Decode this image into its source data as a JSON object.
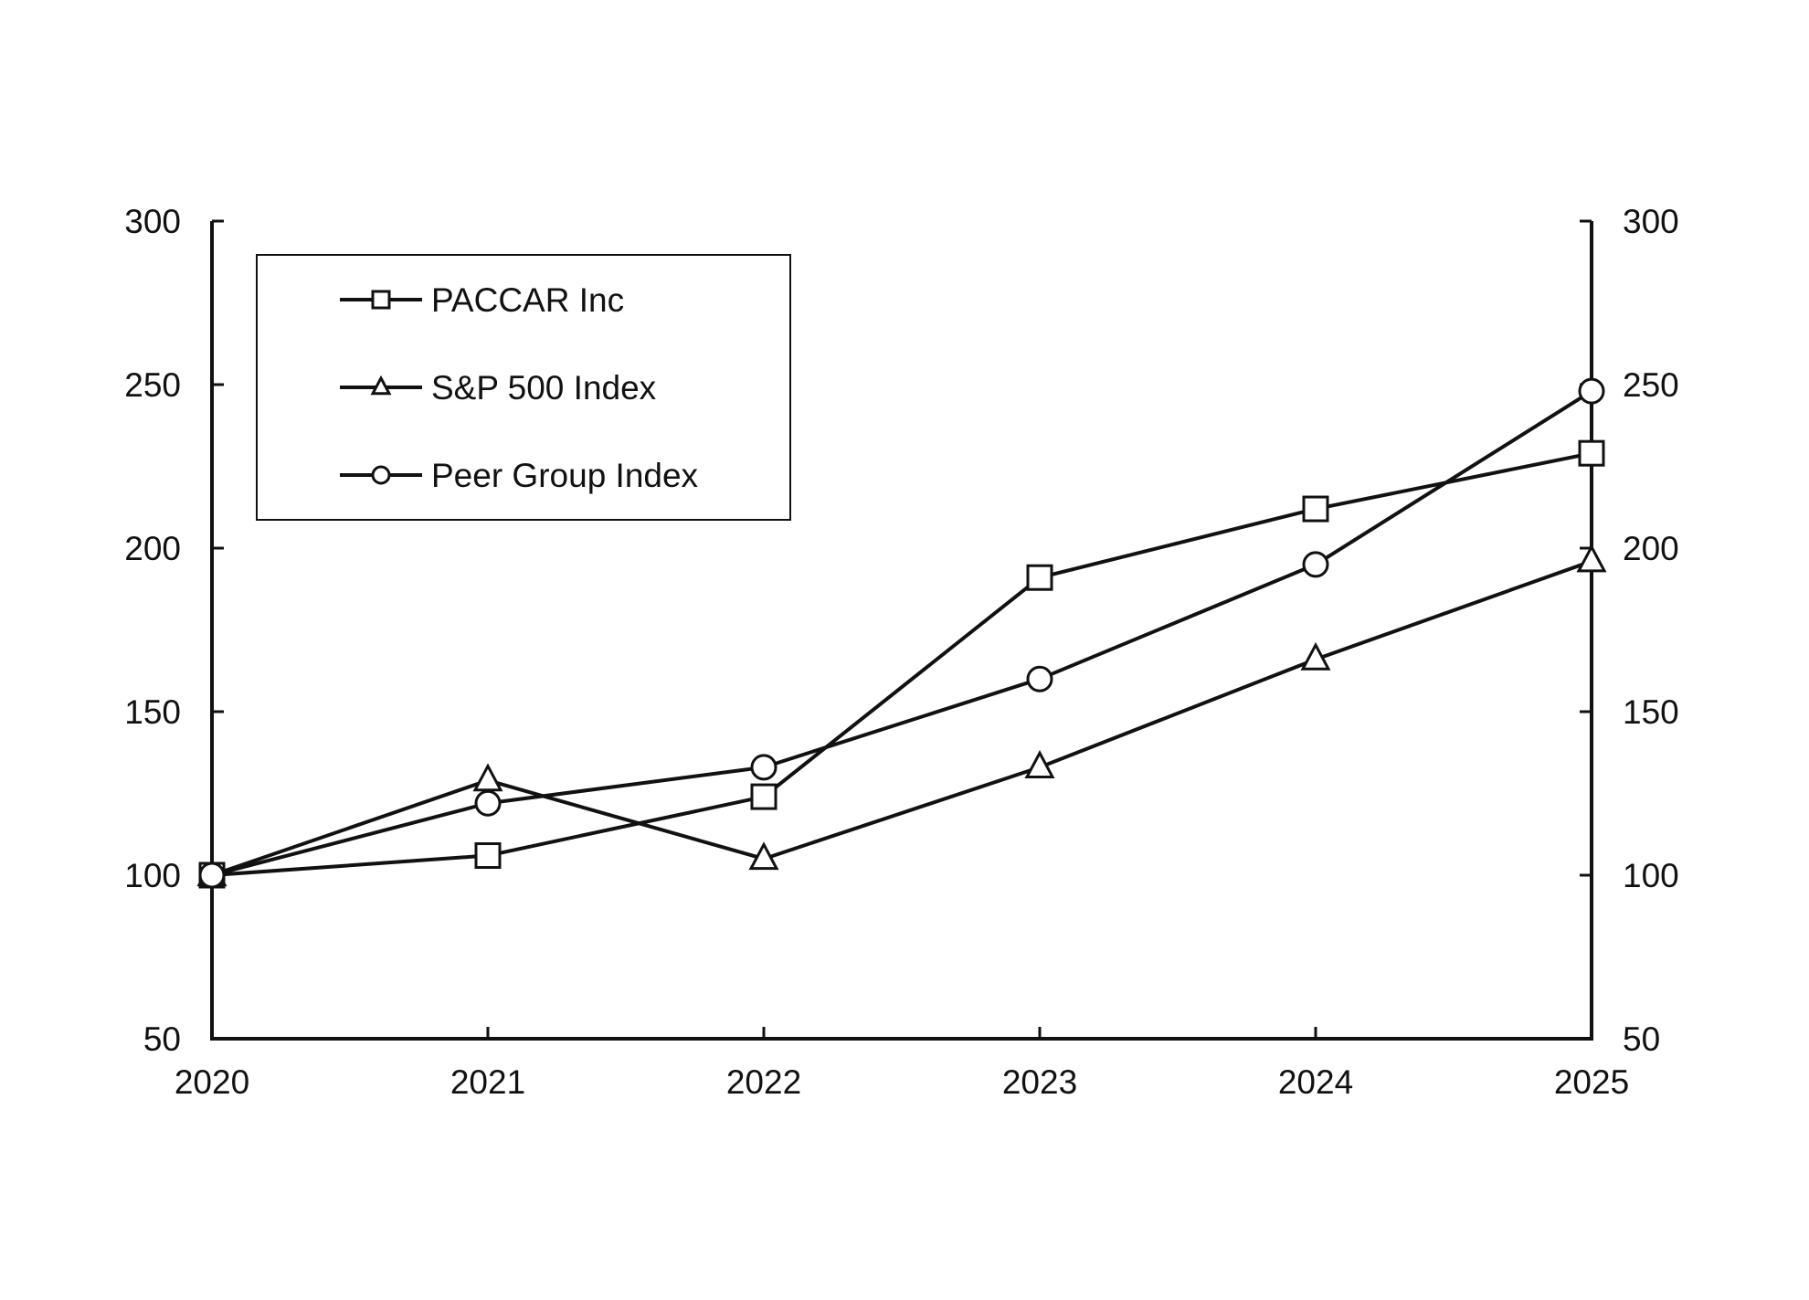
{
  "chart_data": {
    "type": "line",
    "title": "",
    "xlabel": "",
    "ylabel": "",
    "x": [
      "2020",
      "2021",
      "2022",
      "2023",
      "2024",
      "2025"
    ],
    "ylim": [
      50,
      300
    ],
    "yticks": [
      300,
      250,
      200,
      150,
      100,
      50
    ],
    "secondary_y_axis": true,
    "grid": false,
    "legend_position": "top-left",
    "line_color": "#111111",
    "series": [
      {
        "name": "PACCAR Inc",
        "marker": "square",
        "values": [
          100,
          106,
          124,
          191,
          212,
          229
        ]
      },
      {
        "name": "S&P 500 Index",
        "marker": "triangle",
        "values": [
          100,
          129,
          105,
          133,
          166,
          196
        ]
      },
      {
        "name": "Peer Group Index",
        "marker": "circle",
        "values": [
          100,
          122,
          133,
          160,
          195,
          248
        ]
      }
    ]
  }
}
